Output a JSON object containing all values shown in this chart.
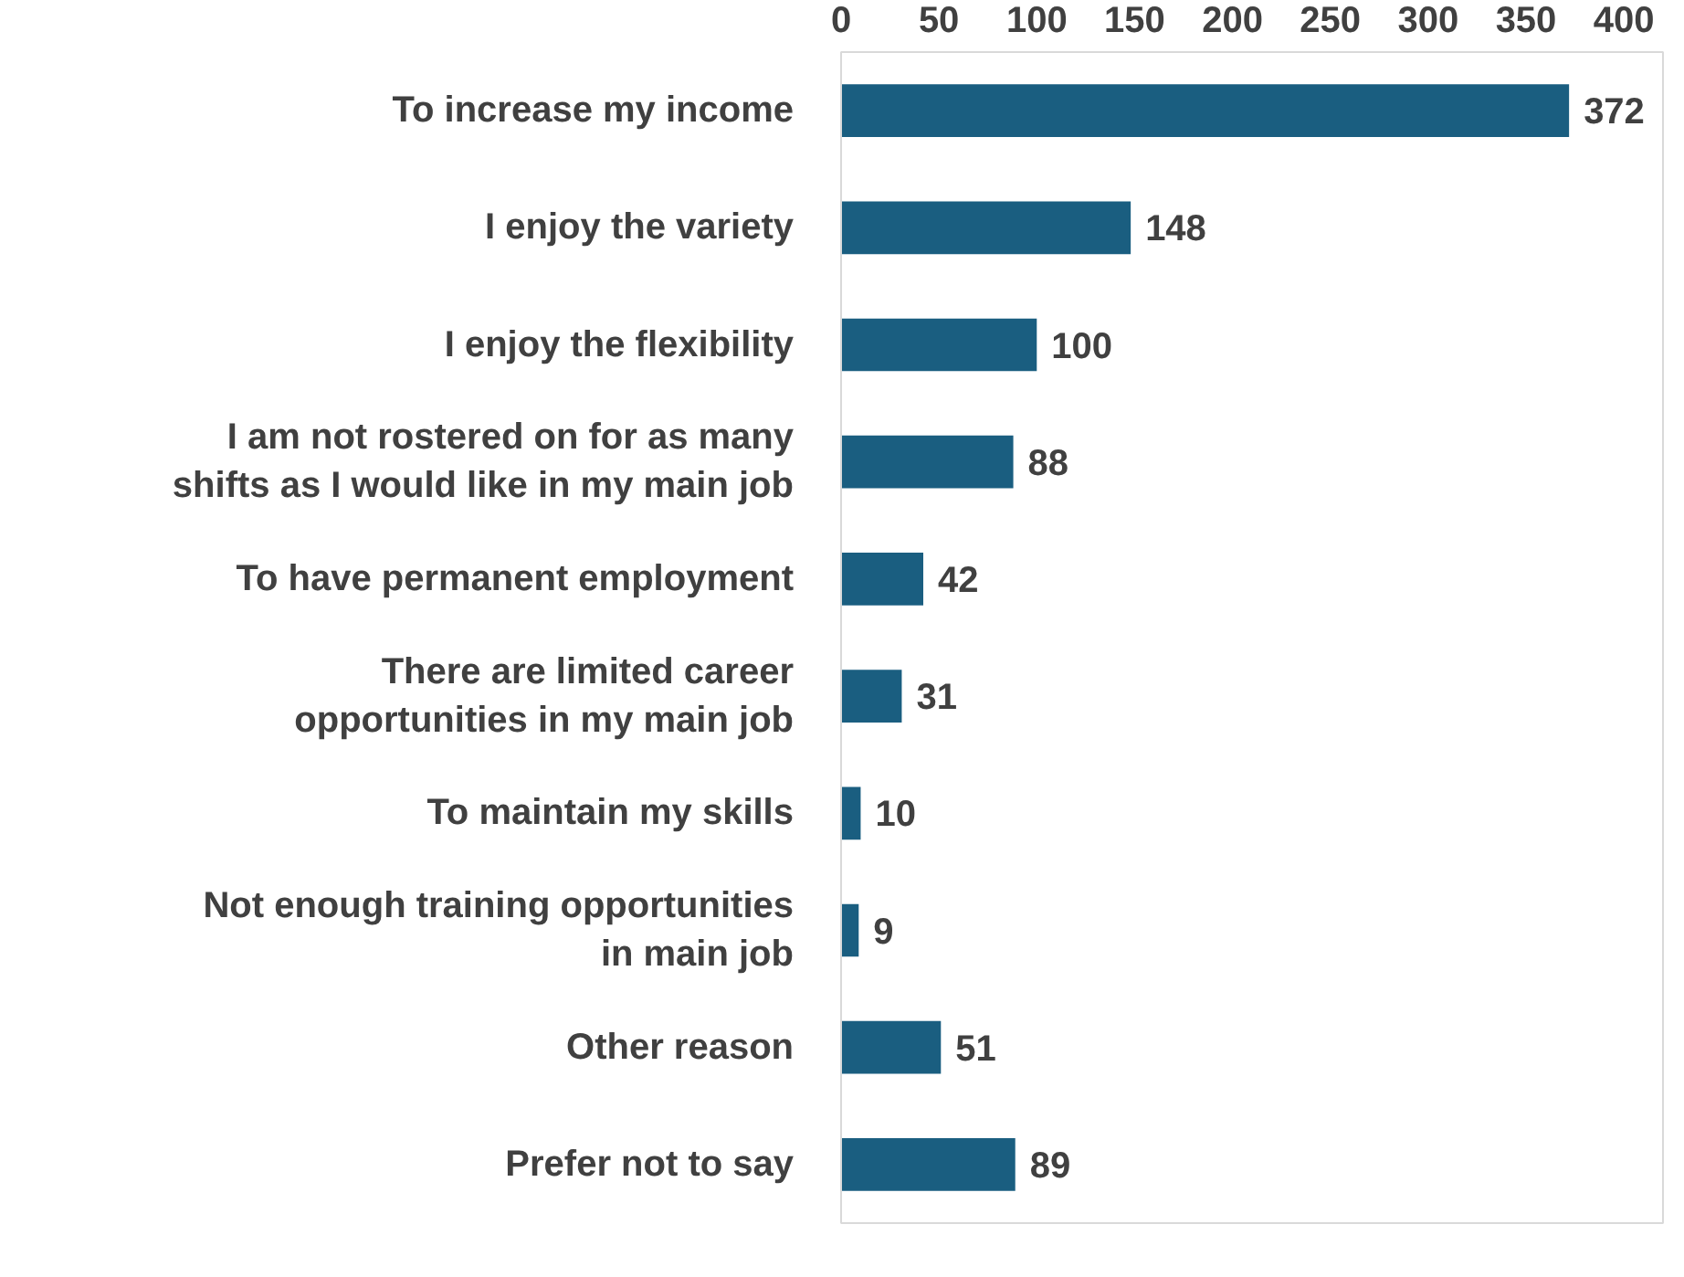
{
  "chart_data": {
    "type": "bar",
    "orientation": "horizontal",
    "categories": [
      "To increase my income",
      "I enjoy the variety",
      "I enjoy the flexibility",
      "I am not rostered on for as many\nshifts as I would like in my main job",
      "To have permanent employment",
      "There are limited career\nopportunities in my main job",
      "To maintain my skills",
      "Not enough training opportunities\nin main job",
      "Other reason",
      "Prefer not to say"
    ],
    "values": [
      372,
      148,
      100,
      88,
      42,
      31,
      10,
      9,
      51,
      89
    ],
    "color": "#1a5e80",
    "xlim": [
      0,
      420
    ],
    "xticks": [
      0,
      50,
      100,
      150,
      200,
      250,
      300,
      350,
      400
    ],
    "grid": false,
    "data_labels": true
  }
}
